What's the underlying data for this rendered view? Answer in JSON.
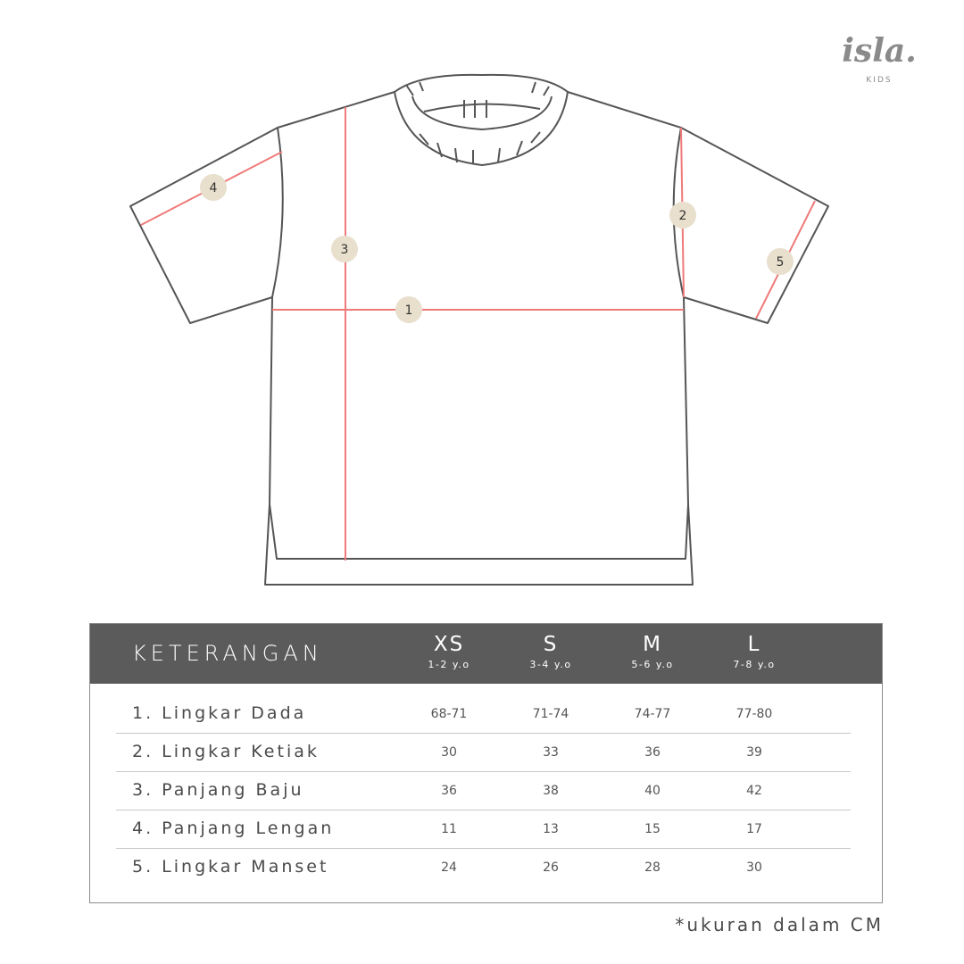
{
  "brand": {
    "name": "isla.",
    "sub": "KIDS"
  },
  "colors": {
    "outline": "#555555",
    "measure_line": "#f07a7a",
    "marker_fill": "#e8dfcd",
    "header_bg": "#5b5b5b"
  },
  "markers": [
    "1",
    "2",
    "3",
    "4",
    "5"
  ],
  "table": {
    "header": "KETERANGAN",
    "sizes": [
      {
        "size": "XS",
        "age": "1-2 y.o"
      },
      {
        "size": "S",
        "age": "3-4 y.o"
      },
      {
        "size": "M",
        "age": "5-6 y.o"
      },
      {
        "size": "L",
        "age": "7-8 y.o"
      }
    ],
    "rows": [
      {
        "label": "1. Lingkar Dada",
        "values": [
          "68-71",
          "71-74",
          "74-77",
          "77-80"
        ]
      },
      {
        "label": "2. Lingkar Ketiak",
        "values": [
          "30",
          "33",
          "36",
          "39"
        ]
      },
      {
        "label": "3. Panjang Baju",
        "values": [
          "36",
          "38",
          "40",
          "42"
        ]
      },
      {
        "label": "4. Panjang Lengan",
        "values": [
          "11",
          "13",
          "15",
          "17"
        ]
      },
      {
        "label": "5. Lingkar Manset",
        "values": [
          "24",
          "26",
          "28",
          "30"
        ]
      }
    ]
  },
  "note": "*ukuran dalam CM"
}
